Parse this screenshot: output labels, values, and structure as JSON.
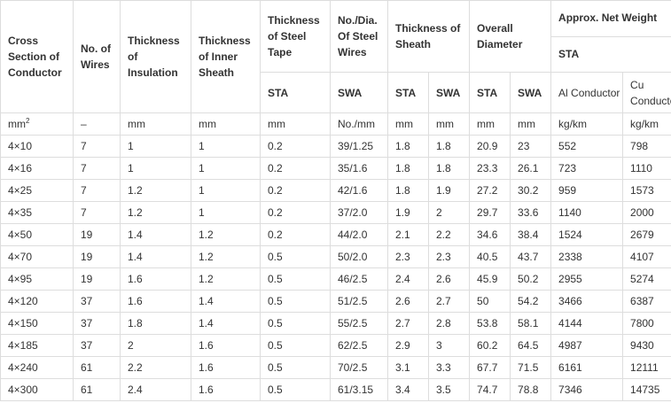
{
  "headers": {
    "cross_section": "Cross Section of Conductor",
    "no_wires": "No. of Wires",
    "thk_insulation": "Thickness of Insulation",
    "thk_inner_sheath": "Thickness of Inner Sheath",
    "thk_steel_tape": "Thickness of Steel Tape",
    "no_dia_steel_wires": "No./Dia. Of Steel Wires",
    "thk_sheath": "Thickness of Sheath",
    "overall_diameter": "Overall Diameter",
    "approx_net_weight": "Approx. Net Weight",
    "sta_group": "STA"
  },
  "subheaders": {
    "steel_tape": "STA",
    "steel_wires": "SWA",
    "sheath_sta": "STA",
    "sheath_swa": "SWA",
    "dia_sta": "STA",
    "dia_swa": "SWA",
    "al_conductor": "Al Conductor",
    "cu_conductor": "Cu Conductor"
  },
  "units": {
    "cross_section": "mm",
    "cross_section_sup": "2",
    "no_wires": "–",
    "insulation": "mm",
    "inner_sheath": "mm",
    "steel_tape": "mm",
    "steel_wires": "No./mm",
    "sheath_sta": "mm",
    "sheath_swa": "mm",
    "dia_sta": "mm",
    "dia_swa": "mm",
    "weight_al": "kg/km",
    "weight_cu": "kg/km"
  },
  "rows": [
    [
      "4×10",
      "7",
      "1",
      "1",
      "0.2",
      "39/1.25",
      "1.8",
      "1.8",
      "20.9",
      "23",
      "552",
      "798"
    ],
    [
      "4×16",
      "7",
      "1",
      "1",
      "0.2",
      "35/1.6",
      "1.8",
      "1.8",
      "23.3",
      "26.1",
      "723",
      "1110"
    ],
    [
      "4×25",
      "7",
      "1.2",
      "1",
      "0.2",
      "42/1.6",
      "1.8",
      "1.9",
      "27.2",
      "30.2",
      "959",
      "1573"
    ],
    [
      "4×35",
      "7",
      "1.2",
      "1",
      "0.2",
      "37/2.0",
      "1.9",
      "2",
      "29.7",
      "33.6",
      "1140",
      "2000"
    ],
    [
      "4×50",
      "19",
      "1.4",
      "1.2",
      "0.2",
      "44/2.0",
      "2.1",
      "2.2",
      "34.6",
      "38.4",
      "1524",
      "2679"
    ],
    [
      "4×70",
      "19",
      "1.4",
      "1.2",
      "0.5",
      "50/2.0",
      "2.3",
      "2.3",
      "40.5",
      "43.7",
      "2338",
      "4107"
    ],
    [
      "4×95",
      "19",
      "1.6",
      "1.2",
      "0.5",
      "46/2.5",
      "2.4",
      "2.6",
      "45.9",
      "50.2",
      "2955",
      "5274"
    ],
    [
      "4×120",
      "37",
      "1.6",
      "1.4",
      "0.5",
      "51/2.5",
      "2.6",
      "2.7",
      "50",
      "54.2",
      "3466",
      "6387"
    ],
    [
      "4×150",
      "37",
      "1.8",
      "1.4",
      "0.5",
      "55/2.5",
      "2.7",
      "2.8",
      "53.8",
      "58.1",
      "4144",
      "7800"
    ],
    [
      "4×185",
      "37",
      "2",
      "1.6",
      "0.5",
      "62/2.5",
      "2.9",
      "3",
      "60.2",
      "64.5",
      "4987",
      "9430"
    ],
    [
      "4×240",
      "61",
      "2.2",
      "1.6",
      "0.5",
      "70/2.5",
      "3.1",
      "3.3",
      "67.7",
      "71.5",
      "6161",
      "12111"
    ],
    [
      "4×300",
      "61",
      "2.4",
      "1.6",
      "0.5",
      "61/3.15",
      "3.4",
      "3.5",
      "74.7",
      "78.8",
      "7346",
      "14735"
    ]
  ]
}
